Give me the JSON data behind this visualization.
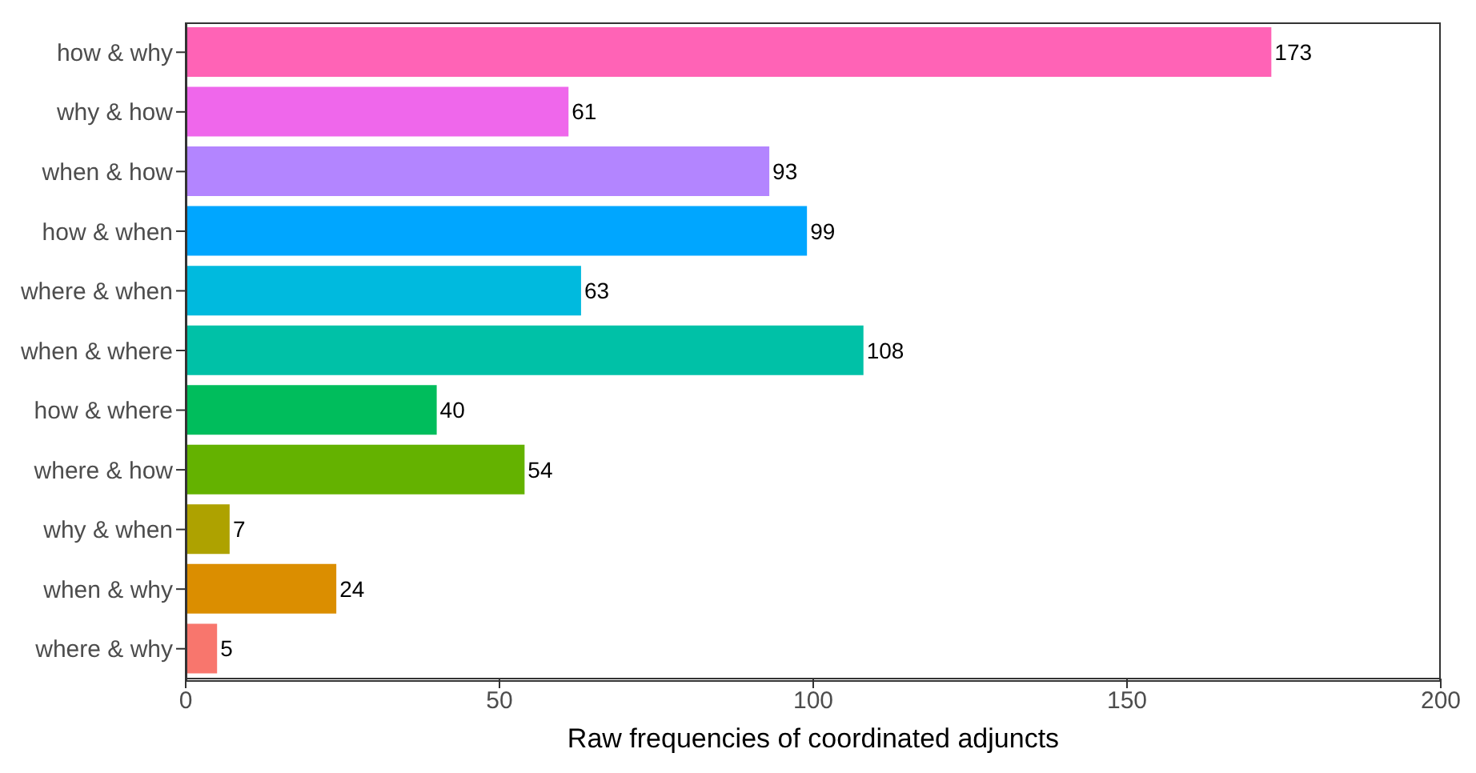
{
  "chart_data": {
    "type": "bar",
    "orientation": "horizontal",
    "xlabel": "Raw frequencies of coordinated adjuncts",
    "categories": [
      "how & why",
      "why & how",
      "when & how",
      "how & when",
      "where & when",
      "when & where",
      "how & where",
      "where & how",
      "why & when",
      "when & why",
      "where & why"
    ],
    "values": [
      173,
      61,
      93,
      99,
      63,
      108,
      40,
      54,
      7,
      24,
      5
    ],
    "colors": [
      "#ff63b6",
      "#ef67eb",
      "#b385ff",
      "#00a6ff",
      "#00bade",
      "#00c1a7",
      "#00bd5c",
      "#64b200",
      "#aea200",
      "#db8e00",
      "#f8766d"
    ],
    "xlim": [
      0,
      200
    ],
    "xticks": [
      0,
      50,
      100,
      150,
      200
    ],
    "data_labels": true,
    "grid": false
  }
}
